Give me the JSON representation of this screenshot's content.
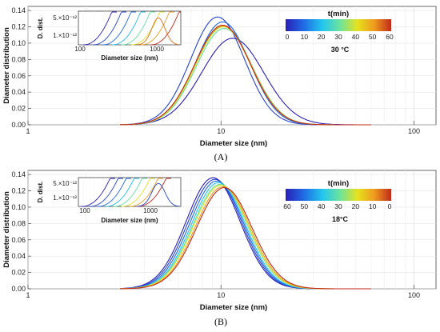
{
  "colors": {
    "gradient": [
      "#2a1fb8",
      "#1f6fe6",
      "#22c7ee",
      "#6fe39a",
      "#e6e21e",
      "#ef9a1e",
      "#c02a1a"
    ],
    "stops": [
      0,
      0.18,
      0.35,
      0.52,
      0.68,
      0.84,
      1
    ]
  },
  "chart_data": [
    {
      "type": "line",
      "panel_label": "(A)",
      "xlabel": "Diameter size (nm)",
      "ylabel": "Diameter distribution",
      "xscale": "log",
      "xlim": [
        1,
        130
      ],
      "ylim": [
        0,
        0.145
      ],
      "xtick_labels": [
        "1",
        "10",
        "100"
      ],
      "ytick_labels": [
        "0.00",
        "0.02",
        "0.04",
        "0.06",
        "0.08",
        "0.10",
        "0.12",
        "0.14"
      ],
      "grid": true,
      "colorbar": {
        "title": "t(min)",
        "ticks": [
          "0",
          "10",
          "20",
          "30",
          "40",
          "50",
          "60"
        ],
        "annotation": "30 °C",
        "placement": "top-right"
      },
      "series": [
        {
          "t": 0,
          "values": {
            "mode": 11.5,
            "peak": 0.106,
            "width": 0.16
          }
        },
        {
          "t": 5,
          "values": {
            "mode": 9.6,
            "peak": 0.132,
            "width": 0.14
          }
        },
        {
          "t": 10,
          "values": {
            "mode": 10.2,
            "peak": 0.126,
            "width": 0.14
          }
        },
        {
          "t": 20,
          "values": {
            "mode": 10.3,
            "peak": 0.121,
            "width": 0.145
          }
        },
        {
          "t": 30,
          "values": {
            "mode": 10.4,
            "peak": 0.118,
            "width": 0.145
          }
        },
        {
          "t": 40,
          "values": {
            "mode": 10.3,
            "peak": 0.12,
            "width": 0.145
          }
        },
        {
          "t": 50,
          "values": {
            "mode": 10.2,
            "peak": 0.121,
            "width": 0.145
          }
        },
        {
          "t": 60,
          "values": {
            "mode": 10.2,
            "peak": 0.122,
            "width": 0.145
          }
        }
      ],
      "inset": {
        "ylabel": "D. dist.",
        "xlabel": "Diameter size (nm)",
        "xtick_labels": [
          "100",
          "1000"
        ],
        "ytick_labels": [
          "5.×10⁻¹²",
          "1.×10⁻¹²"
        ]
      }
    },
    {
      "type": "line",
      "panel_label": "(B)",
      "xlabel": "Diameter size (nm)",
      "ylabel": "Diameter distribution",
      "xscale": "log",
      "xlim": [
        1,
        130
      ],
      "ylim": [
        0,
        0.145
      ],
      "xtick_labels": [
        "1",
        "10",
        "100"
      ],
      "ytick_labels": [
        "0.00",
        "0.02",
        "0.04",
        "0.06",
        "0.08",
        "0.10",
        "0.12",
        "0.14"
      ],
      "grid": true,
      "colorbar": {
        "title": "t(min)",
        "ticks": [
          "60",
          "50",
          "40",
          "30",
          "20",
          "10",
          "0"
        ],
        "annotation": "18°C",
        "placement": "top-right"
      },
      "series": [
        {
          "t": 0,
          "values": {
            "mode": 9.1,
            "peak": 0.136,
            "width": 0.14
          }
        },
        {
          "t": 5,
          "values": {
            "mode": 9.3,
            "peak": 0.134,
            "width": 0.14
          }
        },
        {
          "t": 10,
          "values": {
            "mode": 9.5,
            "peak": 0.132,
            "width": 0.14
          }
        },
        {
          "t": 20,
          "values": {
            "mode": 9.7,
            "peak": 0.13,
            "width": 0.14
          }
        },
        {
          "t": 30,
          "values": {
            "mode": 9.9,
            "peak": 0.128,
            "width": 0.142
          }
        },
        {
          "t": 40,
          "values": {
            "mode": 10.0,
            "peak": 0.127,
            "width": 0.142
          }
        },
        {
          "t": 50,
          "values": {
            "mode": 10.2,
            "peak": 0.125,
            "width": 0.142
          }
        },
        {
          "t": 60,
          "values": {
            "mode": 10.4,
            "peak": 0.124,
            "width": 0.143
          }
        }
      ],
      "inset": {
        "ylabel": "D. dist.",
        "xlabel": "Diameter size (nm)",
        "xtick_labels": [
          "100",
          "1000"
        ],
        "ytick_labels": [
          "5.×10⁻¹²",
          "1.×10⁻¹²"
        ]
      }
    }
  ]
}
